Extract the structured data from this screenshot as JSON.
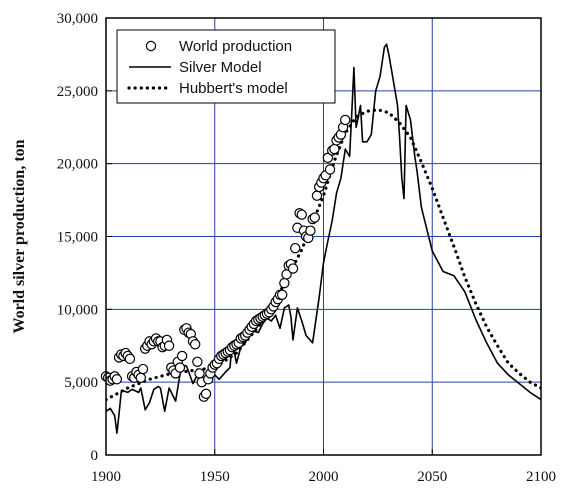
{
  "chart_data": {
    "type": "line",
    "title": "",
    "xlabel": "",
    "ylabel": "World silver production, ton",
    "xlim": [
      1900,
      2100
    ],
    "ylim": [
      0,
      30000
    ],
    "x_ticks": [
      1900,
      1950,
      2000,
      2050,
      2100
    ],
    "y_ticks": [
      0,
      5000,
      10000,
      15000,
      20000,
      25000,
      30000
    ],
    "x_tick_labels": [
      "1900",
      "1950",
      "2000",
      "2050",
      "2100"
    ],
    "y_tick_labels": [
      "0",
      "5,000",
      "10,000",
      "15,000",
      "20,000",
      "25,000",
      "30,000"
    ],
    "grid": true,
    "legend_position": "top-left",
    "colors": {
      "grid": "#2740a8",
      "data": "#000000",
      "marker_fill": "#ffffff"
    },
    "series": [
      {
        "name": "World production",
        "style": "markers",
        "x": [
          1900,
          1901,
          1902,
          1903,
          1904,
          1905,
          1906,
          1907,
          1908,
          1909,
          1910,
          1911,
          1912,
          1913,
          1914,
          1915,
          1916,
          1917,
          1918,
          1919,
          1920,
          1921,
          1922,
          1923,
          1924,
          1925,
          1926,
          1927,
          1928,
          1929,
          1930,
          1931,
          1932,
          1933,
          1934,
          1935,
          1936,
          1937,
          1938,
          1939,
          1940,
          1941,
          1942,
          1943,
          1944,
          1945,
          1946,
          1947,
          1948,
          1949,
          1950,
          1951,
          1952,
          1953,
          1954,
          1955,
          1956,
          1957,
          1958,
          1959,
          1960,
          1961,
          1962,
          1963,
          1964,
          1965,
          1966,
          1967,
          1968,
          1969,
          1970,
          1971,
          1972,
          1973,
          1974,
          1975,
          1976,
          1977,
          1978,
          1979,
          1980,
          1981,
          1982,
          1983,
          1984,
          1985,
          1986,
          1987,
          1988,
          1989,
          1990,
          1991,
          1992,
          1993,
          1994,
          1995,
          1996,
          1997,
          1998,
          1999,
          2000,
          2001,
          2002,
          2003,
          2004,
          2005,
          2006,
          2007,
          2008,
          2009,
          2010
        ],
        "values": [
          5400,
          5300,
          5100,
          5200,
          5400,
          5200,
          6700,
          6900,
          6800,
          7000,
          6800,
          6600,
          5400,
          5300,
          5700,
          5500,
          5300,
          5900,
          7300,
          7500,
          7800,
          7600,
          7800,
          8000,
          7800,
          7800,
          7400,
          7500,
          7900,
          7500,
          6000,
          5800,
          5600,
          6400,
          6000,
          6800,
          8600,
          8700,
          8400,
          8300,
          7800,
          7600,
          6400,
          5600,
          5000,
          4000,
          4200,
          5200,
          5600,
          6000,
          6200,
          6300,
          6600,
          6800,
          6900,
          7000,
          7100,
          7200,
          7400,
          7500,
          7600,
          7700,
          8000,
          8100,
          8200,
          8400,
          8600,
          8800,
          9000,
          9200,
          9300,
          9400,
          9500,
          9600,
          9700,
          9800,
          10000,
          10200,
          10500,
          10700,
          11000,
          11000,
          11800,
          12400,
          13000,
          13100,
          12800,
          14200,
          15600,
          16600,
          16500,
          15400,
          15000,
          14900,
          15400,
          16200,
          16300,
          17800,
          18400,
          18700,
          19000,
          19200,
          20400,
          19600,
          20900,
          21000,
          21600,
          21800,
          22000,
          22500,
          23000
        ]
      },
      {
        "name": "Silver Model",
        "style": "solid",
        "x": [
          1900,
          1902,
          1904,
          1905,
          1906,
          1907,
          1908,
          1910,
          1912,
          1915,
          1916,
          1918,
          1920,
          1922,
          1924,
          1925,
          1927,
          1929,
          1930,
          1932,
          1934,
          1935,
          1937,
          1940,
          1942,
          1944,
          1946,
          1948,
          1950,
          1952,
          1955,
          1957,
          1958,
          1960,
          1962,
          1964,
          1966,
          1968,
          1970,
          1972,
          1974,
          1976,
          1978,
          1980,
          1982,
          1984,
          1985,
          1986,
          1988,
          1990,
          1992,
          1995,
          1998,
          2000,
          2002,
          2004,
          2006,
          2008,
          2010,
          2012,
          2013,
          2014,
          2015,
          2016,
          2017,
          2018,
          2020,
          2022,
          2024,
          2026,
          2028,
          2029,
          2030,
          2032,
          2034,
          2035,
          2036,
          2037,
          2038,
          2040,
          2042,
          2043,
          2045,
          2050,
          2055,
          2060,
          2065,
          2070,
          2075,
          2080,
          2085,
          2090,
          2095,
          2100
        ],
        "values": [
          3000,
          3200,
          2700,
          1500,
          2800,
          4300,
          4400,
          4300,
          4500,
          4300,
          4600,
          3100,
          3600,
          4500,
          4700,
          4600,
          3000,
          4600,
          4300,
          3700,
          5500,
          6200,
          6100,
          4900,
          5500,
          4800,
          5300,
          5600,
          5500,
          5200,
          5700,
          6000,
          7800,
          6300,
          7400,
          7700,
          8300,
          8500,
          8400,
          9000,
          9400,
          9200,
          9600,
          8700,
          10100,
          10300,
          9500,
          7900,
          10100,
          9200,
          8200,
          7700,
          10800,
          13200,
          14700,
          16100,
          18000,
          19000,
          21000,
          20500,
          23500,
          26600,
          22500,
          23200,
          24000,
          21500,
          21500,
          22000,
          25000,
          26000,
          28000,
          28200,
          27500,
          25800,
          24000,
          21800,
          19000,
          17600,
          24000,
          23000,
          20500,
          19500,
          17000,
          14000,
          12600,
          12300,
          11200,
          9300,
          7700,
          6300,
          5500,
          4900,
          4300,
          3800
        ]
      },
      {
        "name": "Hubbert's model",
        "style": "dotted",
        "x": [
          1900,
          1905,
          1910,
          1920,
          1930,
          1940,
          1950,
          1960,
          1970,
          1980,
          1990,
          2000,
          2005,
          2010,
          2015,
          2020,
          2025,
          2030,
          2035,
          2040,
          2045,
          2050,
          2055,
          2060,
          2065,
          2070,
          2075,
          2080,
          2085,
          2090,
          2095,
          2100
        ],
        "values": [
          3800,
          4200,
          4600,
          5200,
          5600,
          5800,
          6000,
          7000,
          8800,
          11200,
          14100,
          17800,
          20200,
          22100,
          23200,
          23600,
          23700,
          23500,
          22800,
          21800,
          20100,
          18300,
          16300,
          14300,
          12200,
          10400,
          8800,
          7500,
          6300,
          5600,
          5000,
          4600
        ]
      }
    ]
  }
}
